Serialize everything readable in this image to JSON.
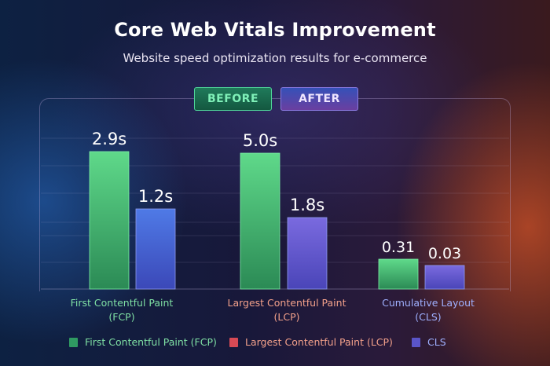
{
  "title": "Core Web Vitals Improvement",
  "subtitle": "Website speed optimization results for e-commerce",
  "toggles": {
    "before_label": "BEFORE",
    "after_label": "AFTER"
  },
  "categories": [
    {
      "line1": "First Contentful Paint",
      "line2": "(FCP)"
    },
    {
      "line1": "Largest Contentful Paint",
      "line2": "(LCP)"
    },
    {
      "line1": "Cumulative Layout",
      "line2": "(CLS)"
    }
  ],
  "legend": [
    {
      "label": "First Contentful Paint (FCP)"
    },
    {
      "label": "Largest Contentful Paint (LCP)"
    },
    {
      "label": "CLS"
    }
  ],
  "colors": {
    "before_bar": "#4fc87e",
    "after_bar": "#4a6ad8",
    "fcp_text": "#7fe0a4",
    "lcp_text": "#f2a08a",
    "cls_text": "#9fb0ff",
    "legend_fcp": "#2f9a62",
    "legend_lcp": "#d84a55",
    "legend_cls": "#5a55c8"
  },
  "chart_data": {
    "type": "bar",
    "title": "Core Web Vitals Improvement",
    "subtitle": "Website speed optimization results for e-commerce",
    "categories": [
      "First Contentful Paint (FCP)",
      "Largest Contentful Paint (LCP)",
      "Cumulative Layout (CLS)"
    ],
    "series": [
      {
        "name": "BEFORE",
        "values": [
          2.9,
          5.0,
          0.31
        ],
        "labels": [
          "2.9s",
          "5.0s",
          "0.31"
        ]
      },
      {
        "name": "AFTER",
        "values": [
          1.2,
          1.8,
          0.03
        ],
        "labels": [
          "1.2s",
          "1.8s",
          "0.03"
        ]
      }
    ],
    "grid": true,
    "legend_position": "bottom"
  }
}
